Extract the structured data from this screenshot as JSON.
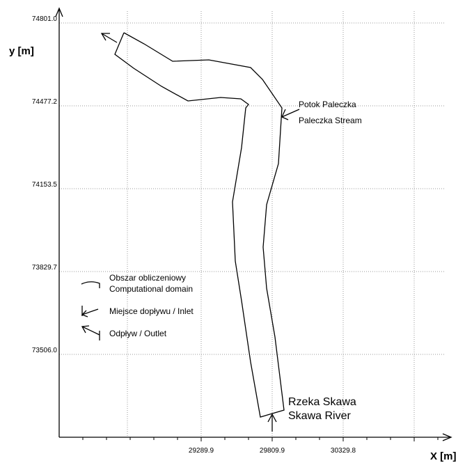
{
  "chart_data": {
    "type": "diagram",
    "xlabel": "X [m]",
    "ylabel": "y [m]",
    "x_ticks": [
      "29289.9",
      "29809.9",
      "30329.8"
    ],
    "y_ticks": [
      "74801.0",
      "74477.2",
      "74153.5",
      "73829.7",
      "73506.0"
    ],
    "legend": [
      {
        "symbol": "domain-line",
        "lines": [
          "Obszar obliczeniowy",
          "Computational domain"
        ]
      },
      {
        "symbol": "inlet-arrow",
        "lines": [
          "Miejsce dopływu / Inlet"
        ]
      },
      {
        "symbol": "outlet-arrow",
        "lines": [
          "Odpływ / Outlet"
        ]
      }
    ],
    "annotations": {
      "stream": [
        "Potok Paleczka",
        "Paleczka Stream"
      ],
      "river": [
        "Rzeka Skawa",
        "Skawa River"
      ]
    }
  }
}
